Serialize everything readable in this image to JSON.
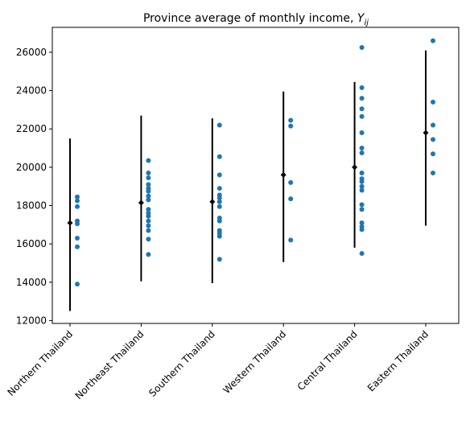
{
  "chart_data": {
    "type": "scatter",
    "title": "Province average of monthly income, ",
    "title_math": "Y",
    "title_math_sub": "ij",
    "xlabel": "",
    "ylabel": "",
    "ylim": [
      11850,
      27300
    ],
    "yticks": [
      12000,
      14000,
      16000,
      18000,
      20000,
      22000,
      24000,
      26000
    ],
    "grid": false,
    "point_color": "#1f77b4",
    "summary_color": "#000000",
    "categories": [
      "Northern Thailand",
      "Northeast Thailand",
      "Southern Thailand",
      "Western Thailand",
      "Central Thailand",
      "Eastern Thailand"
    ],
    "means": [
      17100,
      18150,
      18200,
      19600,
      20000,
      21800
    ],
    "intervals": [
      [
        12500,
        21500
      ],
      [
        14050,
        22700
      ],
      [
        13950,
        22550
      ],
      [
        15050,
        23950
      ],
      [
        15800,
        24450
      ],
      [
        16950,
        26100
      ]
    ],
    "points": [
      [
        18450,
        18250,
        17950,
        17200,
        17050,
        16300,
        15850,
        13900
      ],
      [
        20350,
        19700,
        19450,
        19100,
        18900,
        18750,
        18500,
        18300,
        17800,
        17600,
        17450,
        17200,
        16950,
        16700,
        16250,
        15450
      ],
      [
        22200,
        20550,
        19600,
        18900,
        18550,
        18400,
        18200,
        17950,
        17350,
        17200,
        16700,
        16550,
        16400,
        15200
      ],
      [
        22450,
        22150,
        19200,
        18350,
        16200
      ],
      [
        26250,
        24150,
        23600,
        23050,
        22650,
        21800,
        21000,
        20750,
        19700,
        19400,
        19250,
        19000,
        18800,
        18050,
        17800,
        17100,
        16900,
        16750,
        15500
      ],
      [
        26600,
        23400,
        22200,
        21450,
        20700,
        19700
      ]
    ]
  }
}
